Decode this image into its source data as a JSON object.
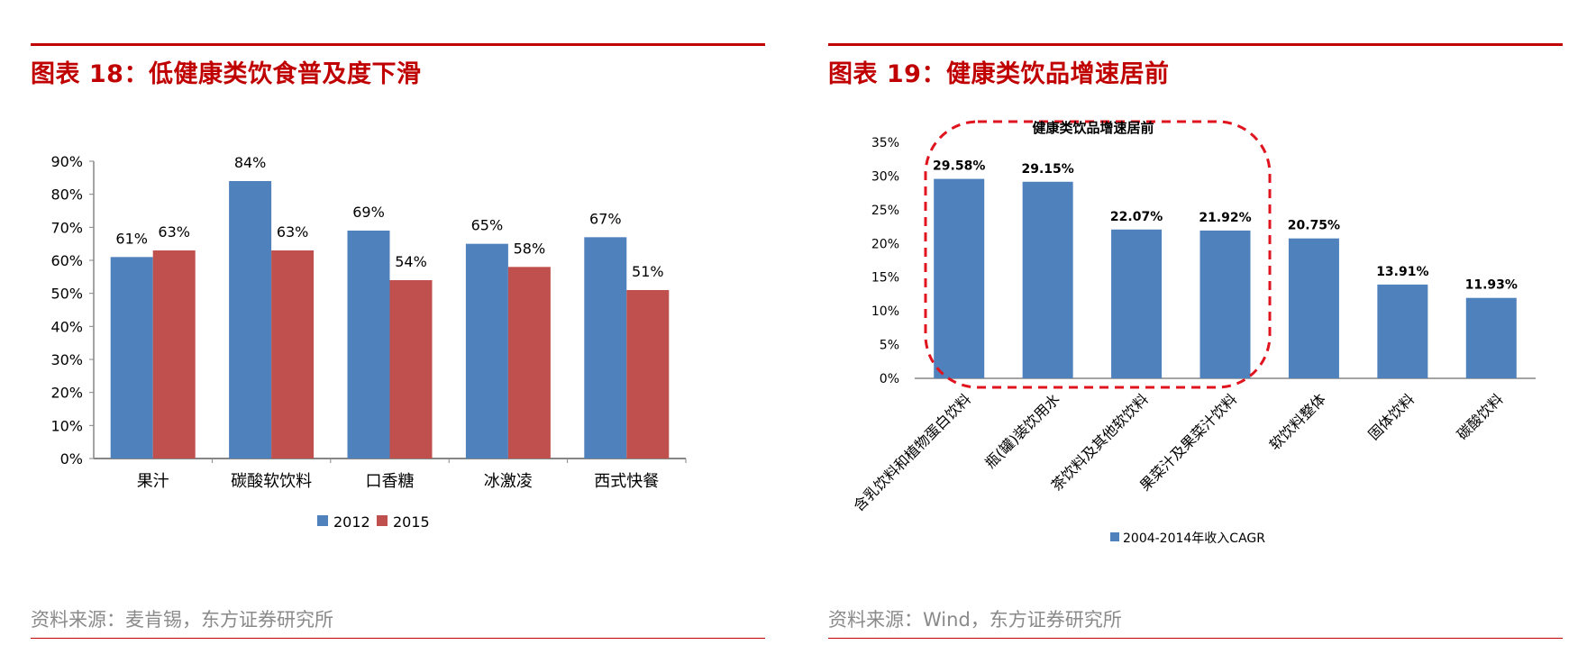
{
  "left": {
    "title": "图表 18：低健康类饮食普及度下滑",
    "source": "资料来源：麦肯锡，东方证券研究所",
    "chart_data": {
      "type": "bar",
      "categories": [
        "果汁",
        "碳酸软饮料",
        "口香糖",
        "冰激凌",
        "西式快餐"
      ],
      "series": [
        {
          "name": "2012",
          "values": [
            61,
            84,
            69,
            65,
            67
          ],
          "labels": [
            "61%",
            "84%",
            "69%",
            "65%",
            "67%"
          ],
          "color": "#4f81bd"
        },
        {
          "name": "2015",
          "values": [
            63,
            63,
            54,
            58,
            51
          ],
          "labels": [
            "63%",
            "63%",
            "54%",
            "58%",
            "51%"
          ],
          "color": "#c0504d"
        }
      ],
      "ylim": [
        0,
        90
      ],
      "yticks": [
        "0%",
        "10%",
        "20%",
        "30%",
        "40%",
        "50%",
        "60%",
        "70%",
        "80%",
        "90%"
      ],
      "legend": "bottom-center",
      "grid": false
    }
  },
  "right": {
    "title": "图表 19：健康类饮品增速居前",
    "source": "资料来源：Wind，东方证券研究所",
    "chart_data": {
      "type": "bar",
      "categories": [
        "含乳饮料和植物蛋白饮料",
        "瓶(罐)装饮用水",
        "茶饮料及其他软饮料",
        "果菜汁及果菜汁饮料",
        "软饮料整体",
        "固体饮料",
        "碳酸饮料"
      ],
      "series": [
        {
          "name": "2004-2014年收入CAGR",
          "values": [
            29.58,
            29.15,
            22.07,
            21.92,
            20.75,
            13.91,
            11.93
          ],
          "labels": [
            "29.58%",
            "29.15%",
            "22.07%",
            "21.92%",
            "20.75%",
            "13.91%",
            "11.93%"
          ],
          "color": "#4f81bd"
        }
      ],
      "annotation": "健康类饮品增速居前",
      "ylim": [
        0,
        35
      ],
      "yticks": [
        "0%",
        "5%",
        "10%",
        "15%",
        "20%",
        "25%",
        "30%",
        "35%"
      ],
      "legend": "bottom-center",
      "grid": false
    }
  }
}
